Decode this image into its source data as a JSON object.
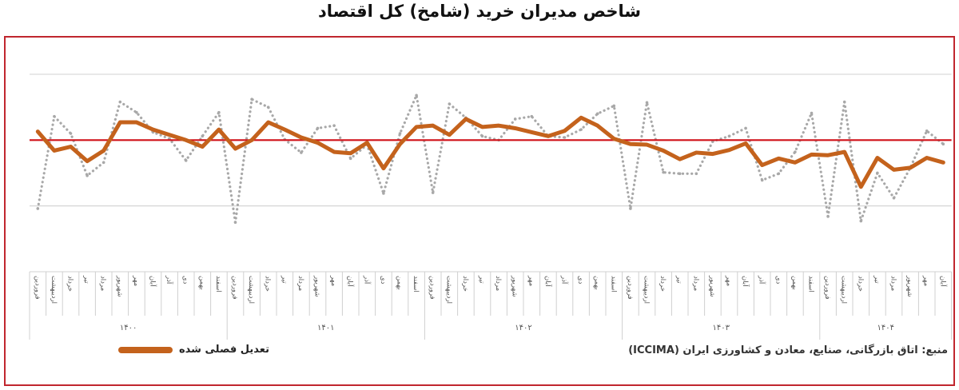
{
  "title": "شاخص مدیران خرید (شامخ) کل اقتصاد",
  "legend": {
    "adjusted_label": "تعدیل فصلی شده"
  },
  "source": "منبع: اتاق بازرگانی، صنایع، معادن و کشاورزی ایران (ICCIMA)",
  "colors": {
    "adjusted": "#c4621c",
    "raw": "#a8a8a8",
    "threshold": "#d01018",
    "frame": "#c0262e"
  },
  "chart_data": {
    "type": "line",
    "title": "شاخص مدیران خرید (شامخ) کل اقتصاد",
    "month_names": [
      "فروردین",
      "اردیبهشت",
      "خرداد",
      "تیر",
      "مرداد",
      "شهریور",
      "مهر",
      "آبان",
      "آذر",
      "دی",
      "بهمن",
      "اسفند"
    ],
    "years": [
      {
        "label": "۱۴۰۰",
        "months": 12
      },
      {
        "label": "۱۴۰۱",
        "months": 12
      },
      {
        "label": "۱۴۰۲",
        "months": 12
      },
      {
        "label": "۱۴۰۳",
        "months": 12
      },
      {
        "label": "۱۴۰۴",
        "months": 8
      }
    ],
    "ylim": [
      30,
      64
    ],
    "gridlines": [
      40,
      60
    ],
    "threshold": 50,
    "legend_position": "bottom-left",
    "series": [
      {
        "style": "dotted",
        "values": [
          39.6,
          53.6,
          51.0,
          44.6,
          46.6,
          55.8,
          54.2,
          51.2,
          50.2,
          46.9,
          50.6,
          54.2,
          37.5,
          56.2,
          55.0,
          50.1,
          48.1,
          51.8,
          52.2,
          47.2,
          49.3,
          41.9,
          51.0,
          56.8,
          42.0,
          55.5,
          53.4,
          50.6,
          50.0,
          53.2,
          53.6,
          50.6,
          50.4,
          51.6,
          54.0,
          55.2,
          39.6,
          55.7,
          45.1,
          44.9,
          44.9,
          49.8,
          50.6,
          51.8,
          43.9,
          44.9,
          48.2,
          54.1,
          38.4,
          55.8,
          37.7,
          45.0,
          41.2,
          45.8,
          51.4,
          49.4
        ]
      },
      {
        "name": "تعدیل فصلی شده",
        "style": "solid",
        "values": [
          51.3,
          48.4,
          49.0,
          46.8,
          48.4,
          52.7,
          52.7,
          51.6,
          50.8,
          50.0,
          49.0,
          51.6,
          48.7,
          50.0,
          52.7,
          51.6,
          50.4,
          49.6,
          48.2,
          48.0,
          49.6,
          45.7,
          49.4,
          52.0,
          52.2,
          50.8,
          53.2,
          52.0,
          52.2,
          51.8,
          51.2,
          50.6,
          51.4,
          53.4,
          52.2,
          50.2,
          49.4,
          49.3,
          48.4,
          47.1,
          48.1,
          47.9,
          48.5,
          49.5,
          46.2,
          47.2,
          46.6,
          47.8,
          47.7,
          48.2,
          42.9,
          47.3,
          45.5,
          45.8,
          47.3,
          46.6
        ]
      }
    ]
  }
}
